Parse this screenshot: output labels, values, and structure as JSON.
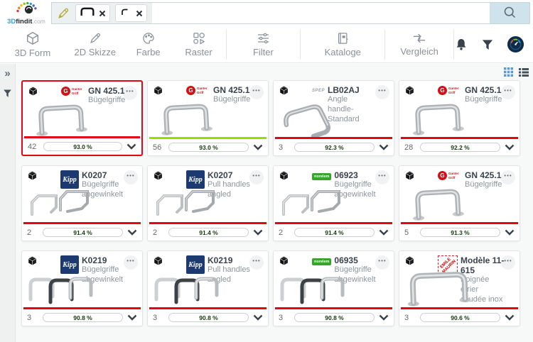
{
  "brand": {
    "logo": {
      "part_3d": "3D",
      "part_findit": "findit",
      "part_com": ".com"
    }
  },
  "search": {
    "chips": [
      {
        "name": "sketch-chip-bracket"
      },
      {
        "name": "sketch-chip-curve"
      }
    ]
  },
  "toolbar": {
    "items": [
      {
        "label": "3D Form",
        "icon": "cube-icon"
      },
      {
        "label": "2D Skizze",
        "icon": "pencil-icon"
      },
      {
        "label": "Farbe",
        "icon": "palette-icon"
      },
      {
        "label": "Raster",
        "icon": "shapes-icon"
      },
      {
        "label": "Filter",
        "icon": "sliders-icon"
      },
      {
        "label": "Kataloge",
        "icon": "catalog-book-icon"
      },
      {
        "label": "Vergleich",
        "icon": "compare-arrows-icon"
      }
    ]
  },
  "colors": {
    "accent_red": "#e30613",
    "accent_lime": "#9bdb02",
    "progress_green": "#3fae2a",
    "kipp_blue": "#1d3a70",
    "norelem_green": "#37a42c",
    "ganter_red": "#cc1417",
    "view_active_blue": "#5b9bd0"
  },
  "cards": [
    {
      "brand": "ganter",
      "brand_label": "Ganter Griff",
      "title": "GN 425.1",
      "subtitle": "Bügelgriffe",
      "image": "bow-handle",
      "count": "42",
      "match_display": "93.0 %",
      "match_value": 93,
      "separator": "red",
      "selected": true
    },
    {
      "brand": "ganter",
      "brand_label": "Ganter Griff",
      "title": "GN 425.1",
      "subtitle": "Bügelgriffe",
      "image": "bow-handle",
      "count": "56",
      "match_display": "93.0 %",
      "match_value": 93,
      "separator": "lime",
      "selected": false
    },
    {
      "brand": "spep",
      "brand_label": "SPEP",
      "title": "LB02AJ",
      "subtitle": "Angle handle-Standard",
      "image": "angle-handle",
      "count": "3",
      "match_display": "92.3 %",
      "match_value": 92.3,
      "separator": "red",
      "selected": false
    },
    {
      "brand": "ganter",
      "brand_label": "Ganter Griff",
      "title": "GN 425.1",
      "subtitle": "Bügelgriffe",
      "image": "bow-handle",
      "count": "28",
      "match_display": "92.2 %",
      "match_value": 92.2,
      "separator": "red",
      "selected": false
    },
    {
      "brand": "kipp",
      "brand_label": "Kipp",
      "title": "K0207",
      "subtitle": "Bügelgriffe abgewinkelt",
      "image": "wire-handles",
      "count": "2",
      "match_display": "91.4 %",
      "match_value": 91.4,
      "separator": "red",
      "selected": false
    },
    {
      "brand": "kipp",
      "brand_label": "Kipp",
      "title": "K0207",
      "subtitle": "Pull handles angled",
      "image": "wire-handles",
      "count": "2",
      "match_display": "91.4 %",
      "match_value": 91.4,
      "separator": "red",
      "selected": false
    },
    {
      "brand": "norelem",
      "brand_label": "norelem",
      "title": "06923",
      "subtitle": "Bügelgriffe abgewinkelt",
      "image": "wire-handles",
      "count": "2",
      "match_display": "91.4 %",
      "match_value": 91.4,
      "separator": "red",
      "selected": false
    },
    {
      "brand": "ganter",
      "brand_label": "Ganter Griff",
      "title": "GN 425.1",
      "subtitle": "Bügelgriffe",
      "image": "bow-handle",
      "count": "5",
      "match_display": "91.3 %",
      "match_value": 91.3,
      "separator": "red",
      "selected": false
    },
    {
      "brand": "kipp",
      "brand_label": "Kipp",
      "title": "K0219",
      "subtitle": "Bügelgriffe abgewinkelt",
      "image": "trio-handles",
      "count": "3",
      "match_display": "90.8 %",
      "match_value": 90.8,
      "separator": "red",
      "selected": false
    },
    {
      "brand": "kipp",
      "brand_label": "Kipp",
      "title": "K0219",
      "subtitle": "Pull handles angled",
      "image": "trio-handles",
      "count": "3",
      "match_display": "90.8 %",
      "match_value": 90.8,
      "separator": "red",
      "selected": false
    },
    {
      "brand": "norelem",
      "brand_label": "norelem",
      "title": "06935",
      "subtitle": "Bügelgriffe abgewinkelt",
      "image": "trio-handles",
      "count": "3",
      "match_display": "90.8 %",
      "match_value": 90.8,
      "separator": "red",
      "selected": false
    },
    {
      "brand": "maurin",
      "brand_label": "EMILE MAURIN",
      "title": "Modèle 11-615",
      "subtitle": "Poignée étrier coudée inox",
      "image": "wide-bow-handle",
      "count": "3",
      "match_display": "90.6 %",
      "match_value": 90.6,
      "separator": "red",
      "selected": false
    }
  ]
}
